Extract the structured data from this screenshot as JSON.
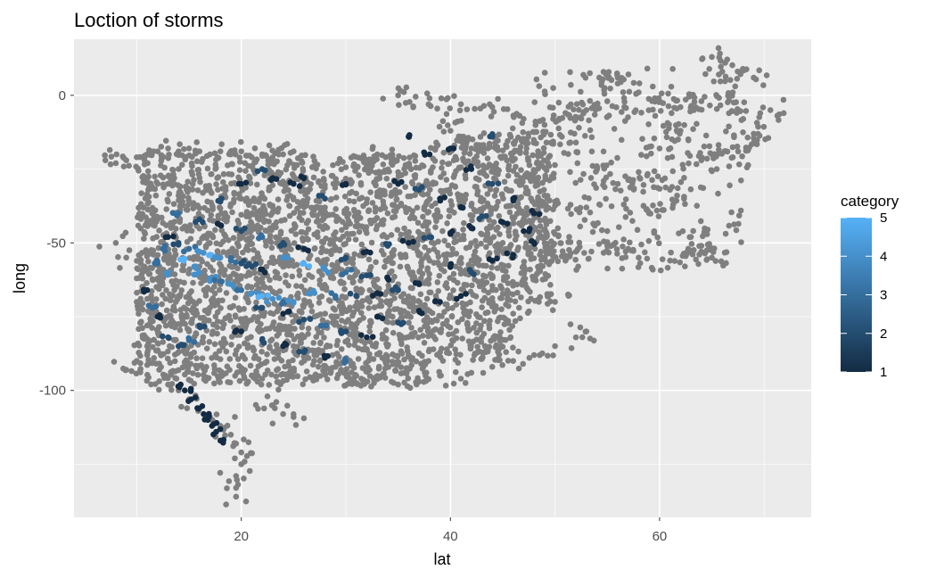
{
  "chart_data": {
    "type": "scatter",
    "title": "Loction of storms",
    "xlabel": "lat",
    "ylabel": "long",
    "xlim": [
      4,
      74.5
    ],
    "ylim": [
      -143,
      19
    ],
    "x_ticks": [
      20,
      40,
      60
    ],
    "y_ticks": [
      0,
      -50,
      -100
    ],
    "grid": true,
    "background_color": "#ebebeb",
    "point_color_untyped": "#7f7f7f",
    "legend": {
      "title": "category",
      "placement": "right",
      "min": 1,
      "max": 5,
      "ticks": [
        5,
        4,
        3,
        2,
        1
      ],
      "low_color": "#132b43",
      "high_color": "#56b1f7"
    },
    "series": [
      {
        "values": [
          [
            7.0,
            -22
          ],
          [
            8,
            -23
          ],
          [
            9,
            -22
          ],
          [
            10,
            -21
          ],
          [
            11,
            -20
          ],
          [
            12,
            -19
          ],
          [
            13,
            -18
          ],
          [
            14,
            -19
          ],
          [
            15,
            -18
          ],
          [
            16,
            -19
          ],
          [
            17,
            -20
          ],
          [
            18,
            -19
          ],
          [
            19,
            -20
          ],
          [
            20,
            -19
          ],
          [
            21,
            -21
          ],
          [
            22,
            -20
          ],
          [
            23,
            -21
          ],
          [
            24,
            -20
          ],
          [
            25,
            -19
          ],
          [
            8,
            -50
          ],
          [
            9,
            -55
          ],
          [
            10,
            -62
          ],
          [
            10,
            -70
          ],
          [
            11,
            -78
          ],
          [
            11,
            -85
          ],
          [
            9,
            -93
          ],
          [
            10,
            -90
          ],
          [
            11,
            -88
          ],
          [
            12,
            -84
          ],
          [
            13,
            -98
          ],
          [
            14,
            -100
          ],
          [
            15,
            -103
          ],
          [
            16,
            -106
          ],
          [
            17,
            -109
          ],
          [
            18,
            -112
          ],
          [
            19,
            -115
          ],
          [
            19.5,
            -118
          ],
          [
            20,
            -121
          ],
          [
            20,
            -125
          ],
          [
            19.5,
            -129
          ],
          [
            19.5,
            -133
          ],
          [
            19.5,
            -136
          ],
          [
            22,
            -96
          ],
          [
            22.5,
            -102
          ],
          [
            23,
            -105
          ],
          [
            24,
            -108
          ],
          [
            25,
            -109
          ],
          [
            33,
            -96
          ],
          [
            35,
            -98
          ],
          [
            37,
            -97
          ],
          [
            39,
            -95
          ],
          [
            41,
            -96
          ],
          [
            42,
            -94
          ],
          [
            44,
            -92
          ],
          [
            46,
            -90
          ],
          [
            48,
            -88
          ],
          [
            50,
            -85
          ],
          [
            52,
            -82
          ],
          [
            53,
            -80
          ],
          [
            55,
            -2
          ],
          [
            56,
            4
          ],
          [
            56,
            6
          ],
          [
            58,
            1
          ],
          [
            60,
            -2
          ],
          [
            62,
            -4
          ],
          [
            64,
            -2
          ],
          [
            65,
            13
          ],
          [
            66,
            8
          ],
          [
            67,
            1
          ],
          [
            68,
            -8
          ],
          [
            69,
            -13
          ],
          [
            69,
            6
          ],
          [
            70.6,
            -5
          ],
          [
            69,
            -16
          ],
          [
            67,
            -21
          ],
          [
            65,
            -20
          ],
          [
            63,
            -48
          ],
          [
            64,
            -53
          ],
          [
            65,
            -55
          ],
          [
            64,
            -51
          ],
          [
            61,
            -56
          ],
          [
            58,
            -55
          ],
          [
            55,
            -51
          ],
          [
            52,
            -53
          ],
          [
            50,
            -47
          ],
          [
            35,
            0
          ],
          [
            38,
            -1
          ],
          [
            41,
            -3
          ],
          [
            44,
            -4
          ],
          [
            47,
            -8
          ],
          [
            49,
            -10
          ],
          [
            51,
            -6
          ],
          [
            53,
            -5
          ],
          [
            12,
            -30
          ],
          [
            14,
            -34
          ],
          [
            12,
            -42
          ],
          [
            15,
            -45
          ],
          [
            13,
            -55
          ],
          [
            16,
            -58
          ],
          [
            12,
            -62
          ],
          [
            14,
            -68
          ],
          [
            13,
            -75
          ],
          [
            15,
            -80
          ],
          [
            17,
            -72
          ],
          [
            18,
            -64
          ],
          [
            20,
            -35
          ],
          [
            22,
            -40
          ],
          [
            21,
            -48
          ],
          [
            23,
            -55
          ],
          [
            22,
            -62
          ],
          [
            24,
            -70
          ],
          [
            23,
            -78
          ],
          [
            25,
            -85
          ],
          [
            27,
            -88
          ],
          [
            29,
            -92
          ],
          [
            31,
            -95
          ],
          [
            26,
            -32
          ],
          [
            28,
            -38
          ],
          [
            30,
            -44
          ],
          [
            27,
            -52
          ],
          [
            29,
            -58
          ],
          [
            31,
            -66
          ],
          [
            28,
            -74
          ],
          [
            30,
            -80
          ],
          [
            32,
            -86
          ],
          [
            34,
            -90
          ],
          [
            33,
            -20
          ],
          [
            35,
            -26
          ],
          [
            37,
            -32
          ],
          [
            34,
            -40
          ],
          [
            36,
            -48
          ],
          [
            38,
            -56
          ],
          [
            35,
            -64
          ],
          [
            37,
            -72
          ],
          [
            39,
            -80
          ],
          [
            36,
            -88
          ],
          [
            40,
            -12
          ],
          [
            42,
            -18
          ],
          [
            44,
            -24
          ],
          [
            41,
            -34
          ],
          [
            43,
            -42
          ],
          [
            45,
            -50
          ],
          [
            42,
            -58
          ],
          [
            44,
            -66
          ],
          [
            46,
            -74
          ],
          [
            43,
            -82
          ],
          [
            46,
            -22
          ],
          [
            48,
            -28
          ],
          [
            50,
            -36
          ],
          [
            47,
            -42
          ],
          [
            49,
            -50
          ],
          [
            51,
            -56
          ],
          [
            48,
            -62
          ],
          [
            50,
            -70
          ],
          [
            52,
            -16
          ],
          [
            54,
            -24
          ],
          [
            56,
            -30
          ],
          [
            53,
            -38
          ],
          [
            55,
            -46
          ],
          [
            57,
            -52
          ],
          [
            59,
            -40
          ],
          [
            61,
            -32
          ],
          [
            58,
            -26
          ],
          [
            60,
            -18
          ],
          [
            62,
            -12
          ],
          [
            64,
            -22
          ]
        ]
      },
      {
        "values": [
          [
            18,
            -117,
            1
          ],
          [
            17.6,
            -114,
            1
          ],
          [
            17.2,
            -112,
            1
          ],
          [
            16.8,
            -110,
            1
          ],
          [
            16.4,
            -108,
            1
          ],
          [
            15.8,
            -106,
            1
          ],
          [
            15.2,
            -103,
            1
          ],
          [
            14.6,
            -100,
            1
          ],
          [
            14.2,
            -98,
            1
          ],
          [
            13,
            -82,
            2
          ],
          [
            14,
            -85,
            2
          ],
          [
            15,
            -83,
            3
          ],
          [
            16,
            -78,
            2
          ],
          [
            12,
            -75,
            1
          ],
          [
            11.5,
            -72,
            3
          ],
          [
            11,
            -66,
            1
          ],
          [
            13,
            -48,
            1
          ],
          [
            14,
            -50,
            2
          ],
          [
            15,
            -52,
            3
          ],
          [
            16,
            -53,
            4
          ],
          [
            17,
            -54,
            5
          ],
          [
            18,
            -55,
            4
          ],
          [
            19,
            -56,
            3
          ],
          [
            20,
            -57,
            2
          ],
          [
            21,
            -58,
            2
          ],
          [
            22,
            -59,
            1
          ],
          [
            16,
            -60,
            4
          ],
          [
            17,
            -62,
            4
          ],
          [
            18,
            -63,
            3
          ],
          [
            19,
            -64,
            4
          ],
          [
            20,
            -66,
            3
          ],
          [
            21,
            -67,
            4
          ],
          [
            22,
            -68,
            5
          ],
          [
            23,
            -69,
            4
          ],
          [
            24,
            -70,
            3
          ],
          [
            25,
            -70,
            4
          ],
          [
            14,
            -40,
            3
          ],
          [
            16,
            -42,
            2
          ],
          [
            18,
            -44,
            1
          ],
          [
            20,
            -46,
            2
          ],
          [
            22,
            -48,
            3
          ],
          [
            24,
            -50,
            2
          ],
          [
            26,
            -52,
            1
          ],
          [
            24,
            -55,
            4
          ],
          [
            26,
            -57,
            5
          ],
          [
            28,
            -59,
            4
          ],
          [
            30,
            -60,
            3
          ],
          [
            32,
            -61,
            2
          ],
          [
            34,
            -62,
            1
          ],
          [
            22,
            -72,
            2
          ],
          [
            24,
            -74,
            1
          ],
          [
            26,
            -76,
            2
          ],
          [
            28,
            -78,
            3
          ],
          [
            30,
            -80,
            2
          ],
          [
            32,
            -82,
            1
          ],
          [
            20,
            -80,
            1
          ],
          [
            22,
            -83,
            2
          ],
          [
            24,
            -85,
            1
          ],
          [
            26,
            -87,
            2
          ],
          [
            28,
            -89,
            1
          ],
          [
            30,
            -90,
            3
          ],
          [
            27,
            -67,
            4
          ],
          [
            29,
            -68,
            3
          ],
          [
            31,
            -68,
            2
          ],
          [
            33,
            -67,
            1
          ],
          [
            35,
            -66,
            2
          ],
          [
            37,
            -64,
            1
          ],
          [
            30,
            -55,
            2
          ],
          [
            32,
            -53,
            1
          ],
          [
            34,
            -51,
            2
          ],
          [
            36,
            -50,
            1
          ],
          [
            38,
            -48,
            2
          ],
          [
            40,
            -47,
            1
          ],
          [
            42,
            -45,
            1
          ],
          [
            35,
            -30,
            1
          ],
          [
            37,
            -32,
            2
          ],
          [
            39,
            -35,
            1
          ],
          [
            41,
            -38,
            1
          ],
          [
            43,
            -41,
            2
          ],
          [
            45,
            -43,
            1
          ],
          [
            47,
            -46,
            1
          ],
          [
            38,
            -20,
            1
          ],
          [
            40,
            -18,
            1
          ],
          [
            42,
            -25,
            1
          ],
          [
            44,
            -30,
            2
          ],
          [
            46,
            -35,
            1
          ],
          [
            48,
            -40,
            1
          ],
          [
            36,
            -14,
            1
          ],
          [
            44,
            -14,
            2
          ],
          [
            30,
            -30,
            1
          ],
          [
            28,
            -35,
            2
          ],
          [
            26,
            -28,
            1
          ],
          [
            40,
            -58,
            1
          ],
          [
            42,
            -60,
            2
          ],
          [
            44,
            -56,
            1
          ],
          [
            46,
            -54,
            1
          ],
          [
            48,
            -50,
            1
          ],
          [
            33,
            -75,
            1
          ],
          [
            35,
            -77,
            2
          ],
          [
            37,
            -73,
            1
          ],
          [
            39,
            -70,
            1
          ],
          [
            41,
            -68,
            1
          ],
          [
            18,
            -36,
            2
          ],
          [
            20,
            -30,
            1
          ],
          [
            23,
            -28,
            1
          ],
          [
            25,
            -30,
            1
          ],
          [
            22,
            -25,
            2
          ],
          [
            12,
            -57,
            3
          ],
          [
            13,
            -60,
            4
          ],
          [
            12.5,
            -52,
            3
          ],
          [
            14.5,
            -56,
            5
          ],
          [
            15.5,
            -58,
            4
          ]
        ]
      }
    ]
  }
}
